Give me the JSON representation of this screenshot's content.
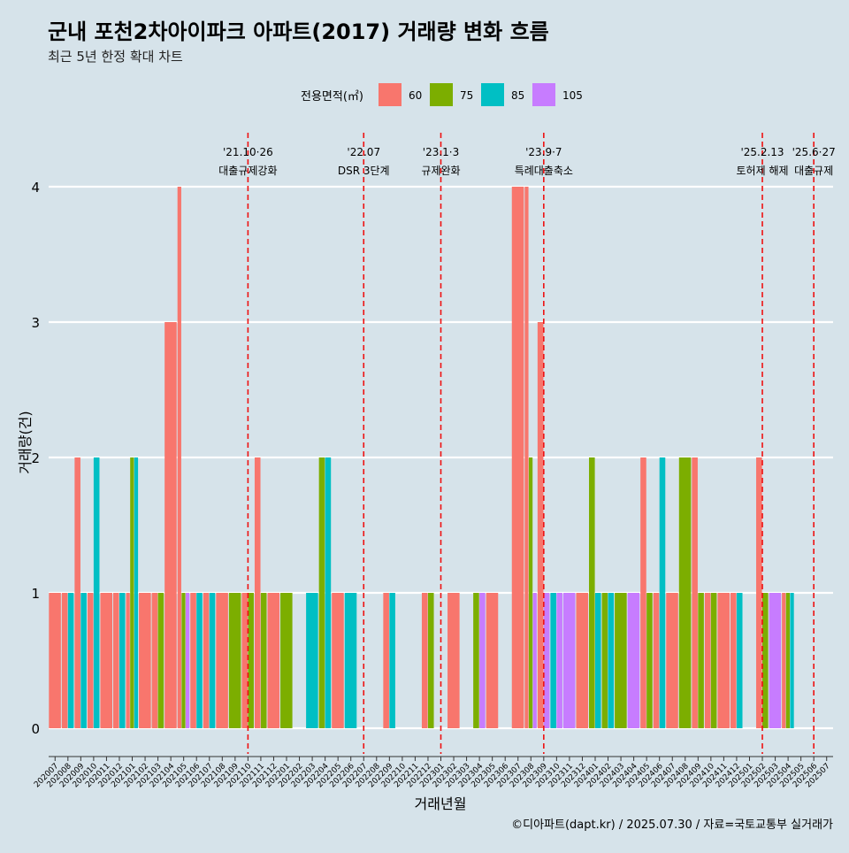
{
  "colors": {
    "background": "#d6e3ea",
    "grid": "#ffffff",
    "event_line": "#ee1111",
    "series": {
      "60": "#f8766d",
      "75": "#7cae00",
      "85": "#00bfc4",
      "105": "#c77cff"
    }
  },
  "footer": {
    "credit": "©디아파트(dapt.kr) / 2025.07.30 / 자료=국토교통부 실거래가"
  },
  "chart_data": {
    "type": "bar",
    "title": "군내 포천2차아이파크 아파트(2017) 거래량 변화 흐름",
    "subtitle": "최근 5년 한정 확대 차트",
    "xlabel": "거래년월",
    "ylabel": "거래량(건)",
    "ylim": [
      0,
      4
    ],
    "yticks": [
      0,
      1,
      2,
      3,
      4
    ],
    "legend": {
      "title": "전용면적(㎡)",
      "position": "top",
      "labels": [
        "60",
        "75",
        "85",
        "105"
      ]
    },
    "categories": [
      "202007",
      "202008",
      "202009",
      "202010",
      "202011",
      "202012",
      "202101",
      "202102",
      "202103",
      "202104",
      "202105",
      "202106",
      "202107",
      "202108",
      "202109",
      "202110",
      "202111",
      "202112",
      "202201",
      "202202",
      "202203",
      "202204",
      "202205",
      "202206",
      "202207",
      "202208",
      "202209",
      "202210",
      "202211",
      "202212",
      "202301",
      "202302",
      "202303",
      "202304",
      "202305",
      "202306",
      "202307",
      "202308",
      "202309",
      "202310",
      "202311",
      "202312",
      "202401",
      "202402",
      "202403",
      "202404",
      "202405",
      "202406",
      "202407",
      "202408",
      "202409",
      "202410",
      "202411",
      "202412",
      "202501",
      "202502",
      "202503",
      "202504",
      "202505",
      "202506",
      "202507"
    ],
    "bars": [
      {
        "month": "202007",
        "series": "60",
        "value": 1
      },
      {
        "month": "202008",
        "series": "60",
        "value": 1
      },
      {
        "month": "202008",
        "series": "85",
        "value": 1
      },
      {
        "month": "202009",
        "series": "60",
        "value": 2
      },
      {
        "month": "202009",
        "series": "85",
        "value": 1
      },
      {
        "month": "202010",
        "series": "60",
        "value": 1
      },
      {
        "month": "202010",
        "series": "85",
        "value": 2
      },
      {
        "month": "202011",
        "series": "60",
        "value": 1
      },
      {
        "month": "202012",
        "series": "60",
        "value": 1
      },
      {
        "month": "202012",
        "series": "85",
        "value": 1
      },
      {
        "month": "202101",
        "series": "60",
        "value": 1
      },
      {
        "month": "202101",
        "series": "75",
        "value": 2
      },
      {
        "month": "202101",
        "series": "85",
        "value": 2
      },
      {
        "month": "202102",
        "series": "60",
        "value": 1
      },
      {
        "month": "202103",
        "series": "60",
        "value": 1
      },
      {
        "month": "202103",
        "series": "75",
        "value": 1
      },
      {
        "month": "202104",
        "series": "60",
        "value": 3
      },
      {
        "month": "202105",
        "series": "60",
        "value": 4
      },
      {
        "month": "202105",
        "series": "75",
        "value": 1
      },
      {
        "month": "202105",
        "series": "105",
        "value": 1
      },
      {
        "month": "202106",
        "series": "60",
        "value": 1
      },
      {
        "month": "202106",
        "series": "85",
        "value": 1
      },
      {
        "month": "202107",
        "series": "60",
        "value": 1
      },
      {
        "month": "202107",
        "series": "85",
        "value": 1
      },
      {
        "month": "202108",
        "series": "60",
        "value": 1
      },
      {
        "month": "202109",
        "series": "75",
        "value": 1
      },
      {
        "month": "202110",
        "series": "60",
        "value": 1
      },
      {
        "month": "202110",
        "series": "75",
        "value": 1
      },
      {
        "month": "202111",
        "series": "60",
        "value": 2
      },
      {
        "month": "202111",
        "series": "75",
        "value": 1
      },
      {
        "month": "202112",
        "series": "60",
        "value": 1
      },
      {
        "month": "202201",
        "series": "75",
        "value": 1
      },
      {
        "month": "202203",
        "series": "85",
        "value": 1
      },
      {
        "month": "202204",
        "series": "75",
        "value": 2
      },
      {
        "month": "202204",
        "series": "85",
        "value": 2
      },
      {
        "month": "202205",
        "series": "60",
        "value": 1
      },
      {
        "month": "202206",
        "series": "85",
        "value": 1
      },
      {
        "month": "202209",
        "series": "60",
        "value": 1
      },
      {
        "month": "202209",
        "series": "85",
        "value": 1
      },
      {
        "month": "202212",
        "series": "60",
        "value": 1
      },
      {
        "month": "202212",
        "series": "75",
        "value": 1
      },
      {
        "month": "202302",
        "series": "60",
        "value": 1
      },
      {
        "month": "202304",
        "series": "75",
        "value": 1
      },
      {
        "month": "202304",
        "series": "105",
        "value": 1
      },
      {
        "month": "202305",
        "series": "60",
        "value": 1
      },
      {
        "month": "202307",
        "series": "60",
        "value": 4
      },
      {
        "month": "202308",
        "series": "60",
        "value": 4
      },
      {
        "month": "202308",
        "series": "75",
        "value": 2
      },
      {
        "month": "202308",
        "series": "105",
        "value": 1
      },
      {
        "month": "202309",
        "series": "60",
        "value": 3
      },
      {
        "month": "202309",
        "series": "105",
        "value": 1
      },
      {
        "month": "202310",
        "series": "85",
        "value": 1
      },
      {
        "month": "202310",
        "series": "105",
        "value": 1
      },
      {
        "month": "202311",
        "series": "105",
        "value": 1
      },
      {
        "month": "202312",
        "series": "60",
        "value": 1
      },
      {
        "month": "202401",
        "series": "75",
        "value": 2
      },
      {
        "month": "202401",
        "series": "85",
        "value": 1
      },
      {
        "month": "202402",
        "series": "75",
        "value": 1
      },
      {
        "month": "202402",
        "series": "85",
        "value": 1
      },
      {
        "month": "202403",
        "series": "75",
        "value": 1
      },
      {
        "month": "202404",
        "series": "105",
        "value": 1
      },
      {
        "month": "202405",
        "series": "60",
        "value": 2
      },
      {
        "month": "202405",
        "series": "75",
        "value": 1
      },
      {
        "month": "202406",
        "series": "60",
        "value": 1
      },
      {
        "month": "202406",
        "series": "85",
        "value": 2
      },
      {
        "month": "202407",
        "series": "60",
        "value": 1
      },
      {
        "month": "202408",
        "series": "75",
        "value": 2
      },
      {
        "month": "202409",
        "series": "75",
        "value": 1
      },
      {
        "month": "202409",
        "series": "60",
        "value": 2
      },
      {
        "month": "202410",
        "series": "60",
        "value": 1
      },
      {
        "month": "202410",
        "series": "75",
        "value": 1
      },
      {
        "month": "202411",
        "series": "60",
        "value": 1
      },
      {
        "month": "202412",
        "series": "60",
        "value": 1
      },
      {
        "month": "202412",
        "series": "85",
        "value": 1
      },
      {
        "month": "202502",
        "series": "60",
        "value": 2
      },
      {
        "month": "202502",
        "series": "75",
        "value": 1
      },
      {
        "month": "202503",
        "series": "105",
        "value": 1
      },
      {
        "month": "202504",
        "series": "60",
        "value": 1
      },
      {
        "month": "202504",
        "series": "75",
        "value": 1
      },
      {
        "month": "202504",
        "series": "85",
        "value": 1
      }
    ],
    "events": [
      {
        "at": "202110",
        "label1": "'21.10·26",
        "label2": "대출규제강화"
      },
      {
        "at": "202207",
        "label1": "'22.07",
        "label2": "DSR 3단계"
      },
      {
        "at": "202301",
        "label1": "'23.1·3",
        "label2": "규제완화"
      },
      {
        "at": "202309",
        "label1": "'23.9·7",
        "label2": "특례대출축소"
      },
      {
        "at": "202502",
        "label1": "'25.2.13",
        "label2": "토허제 해제"
      },
      {
        "at": "202506",
        "label1": "'25.6·27",
        "label2": "대출규제"
      }
    ]
  }
}
